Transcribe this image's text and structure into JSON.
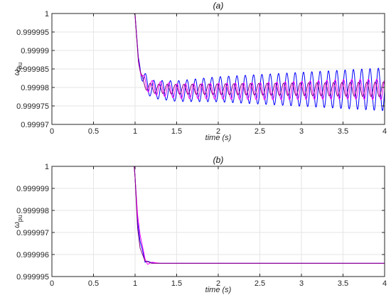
{
  "chart_data": [
    {
      "type": "line",
      "title": "(a)",
      "xlabel": "time (s)",
      "ylabel_main": "ω",
      "ylabel_sub": "pu",
      "xlim": [
        0,
        4
      ],
      "ylim": [
        0.99997,
        1
      ],
      "grid": true,
      "legend": "none",
      "xticks": [
        0,
        0.5,
        1,
        1.5,
        2,
        2.5,
        3,
        3.5,
        4
      ],
      "xtick_labels": [
        "0",
        "0.5",
        "1",
        "1.5",
        "2",
        "2.5",
        "3",
        "3.5",
        "4"
      ],
      "yticks": [
        0.99997,
        0.999975,
        0.99998,
        0.999985,
        0.99999,
        0.999995,
        1
      ],
      "ytick_labels": [
        "0.99997",
        "0.999975",
        "0.99998",
        "0.999985",
        "0.99999",
        "0.999995",
        "1"
      ],
      "step_time": 1.0,
      "series": [
        {
          "color": "#0000ff",
          "x": [
            0,
            0.99,
            1.0,
            1.04,
            1.07,
            1.1,
            1.2,
            1.5,
            2.0,
            2.5,
            3.0,
            3.5,
            3.8,
            4.0
          ],
          "y": [
            1.0,
            1.0,
            0.9999996,
            0.999988,
            0.9999845,
            0.999982,
            0.9999795,
            0.999979,
            0.9999795,
            0.9999795,
            0.9999795,
            0.9999795,
            0.9999795,
            0.9999795
          ],
          "osc_amp_start": 2.2e-06,
          "osc_amp_end": 5.8e-06,
          "osc_freq": 10.0,
          "osc_phase": 0.0
        },
        {
          "color": "#ff00ff",
          "x": [
            0,
            0.99,
            1.0,
            1.04,
            1.07,
            1.1,
            1.2,
            1.5,
            2.0,
            2.5,
            3.0,
            3.5,
            4.0
          ],
          "y": [
            1.0,
            1.0,
            0.9999996,
            0.9999875,
            0.999984,
            0.9999815,
            0.99998,
            0.999979,
            0.999979,
            0.999979,
            0.9999792,
            0.9999795,
            0.9999795
          ],
          "osc_amp_start": 1.8e-06,
          "osc_amp_end": 2.8e-06,
          "osc_freq": 10.0,
          "osc_phase": 1.2
        },
        {
          "color": "#800080",
          "x": [
            0,
            0.99,
            1.0,
            1.04,
            1.07,
            1.1,
            1.2,
            1.5,
            2.0,
            2.5,
            3.0,
            3.5,
            4.0
          ],
          "y": [
            1.0,
            1.0,
            0.9999996,
            0.999987,
            0.9999835,
            0.999981,
            0.9999797,
            0.9999795,
            0.9999795,
            0.9999795,
            0.9999795,
            0.9999795,
            0.9999795
          ],
          "osc_amp_start": 1.2e-06,
          "osc_amp_end": 2e-06,
          "osc_freq": 10.0,
          "osc_phase": 2.4
        }
      ]
    },
    {
      "type": "line",
      "title": "(b)",
      "xlabel": "time (s)",
      "ylabel_main": "ω",
      "ylabel_sub": "pu",
      "xlim": [
        0,
        4
      ],
      "ylim": [
        0.999995,
        1
      ],
      "grid": true,
      "legend": "none",
      "xticks": [
        0,
        0.5,
        1,
        1.5,
        2,
        2.5,
        3,
        3.5,
        4
      ],
      "xtick_labels": [
        "0",
        "0.5",
        "1",
        "1.5",
        "2",
        "2.5",
        "3",
        "3.5",
        "4"
      ],
      "yticks": [
        0.999995,
        0.999996,
        0.999997,
        0.999998,
        0.999999,
        1
      ],
      "ytick_labels": [
        "0.999995",
        "0.999996",
        "0.999997",
        "0.999998",
        "0.999999",
        "1"
      ],
      "series": [
        {
          "color": "#0000ff",
          "x": [
            0,
            0.99,
            1.0,
            1.03,
            1.06,
            1.09,
            1.12,
            1.15,
            1.2,
            1.3,
            4.0
          ],
          "y": [
            1.0,
            1.0,
            0.9999995,
            0.9999975,
            0.9999966,
            0.9999962,
            0.99999565,
            0.9999957,
            0.99999562,
            0.9999956,
            0.9999956
          ]
        },
        {
          "color": "#ff00ff",
          "x": [
            0,
            0.99,
            1.0,
            1.03,
            1.06,
            1.09,
            1.12,
            1.15,
            1.2,
            1.3,
            4.0
          ],
          "y": [
            1.0,
            1.0,
            0.9999995,
            0.9999978,
            0.9999969,
            0.99999635,
            0.9999958,
            0.99999555,
            0.99999565,
            0.9999956,
            0.9999956
          ]
        },
        {
          "color": "#800080",
          "x": [
            0,
            0.99,
            1.0,
            1.03,
            1.06,
            1.09,
            1.12,
            1.15,
            1.2,
            1.3,
            4.0
          ],
          "y": [
            1.0,
            1.0,
            0.9999995,
            0.9999972,
            0.9999963,
            0.999996,
            0.9999957,
            0.99999568,
            0.9999956,
            0.9999956,
            0.9999956
          ]
        }
      ]
    }
  ],
  "colors": {
    "axis": "#262626",
    "grid": "#e6e6e6"
  }
}
